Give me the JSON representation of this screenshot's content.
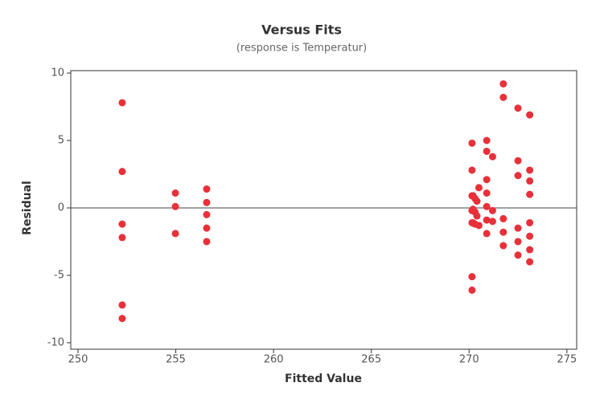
{
  "chart_data": {
    "type": "scatter",
    "title": "Versus Fits",
    "subtitle": "(response is Temperatur)",
    "x_label": "Fitted Value",
    "y_label": "Residual",
    "x": [
      252.26,
      252.26,
      252.26,
      252.26,
      252.26,
      252.26,
      254.98,
      254.98,
      254.98,
      256.58,
      256.58,
      256.58,
      256.58,
      256.58,
      270.15,
      270.15,
      270.15,
      270.15,
      270.15,
      270.15,
      270.15,
      270.2,
      270.3,
      270.4,
      270.2,
      270.3,
      270.4,
      270.2,
      270.3,
      270.5,
      270.5,
      270.9,
      270.9,
      270.9,
      270.9,
      270.9,
      270.9,
      270.9,
      271.2,
      271.2,
      271.2,
      271.75,
      271.75,
      271.75,
      271.75,
      271.75,
      272.5,
      272.5,
      272.5,
      272.5,
      272.5,
      272.5,
      273.1,
      273.1,
      273.1,
      273.1,
      273.1,
      273.1,
      273.1,
      273.1
    ],
    "values": [
      7.8,
      2.7,
      -1.2,
      -2.2,
      -7.2,
      -8.2,
      1.1,
      0.1,
      -1.9,
      1.4,
      0.4,
      -0.5,
      -1.5,
      -2.5,
      4.8,
      2.8,
      0.9,
      -0.2,
      -1.1,
      -5.1,
      -6.1,
      0.9,
      0.7,
      0.5,
      -0.1,
      -0.3,
      -0.6,
      -1.1,
      -1.2,
      -1.3,
      1.5,
      5.0,
      4.2,
      2.1,
      1.1,
      0.1,
      -0.9,
      -1.9,
      3.8,
      -0.2,
      -1.0,
      9.2,
      8.2,
      -0.8,
      -1.8,
      -2.8,
      7.4,
      3.5,
      2.4,
      -1.5,
      -2.5,
      -3.5,
      6.9,
      2.8,
      2.0,
      1.0,
      -1.1,
      -2.1,
      -3.1,
      -4.0
    ],
    "color": "#e8303a",
    "xlim": [
      249.63,
      275.5
    ],
    "xticks": [
      250,
      255,
      260,
      265,
      270,
      275
    ],
    "ylim": [
      -10.48,
      10.18
    ],
    "yticks": [
      -10,
      -5,
      0,
      5,
      10
    ],
    "reference_line": 0
  }
}
